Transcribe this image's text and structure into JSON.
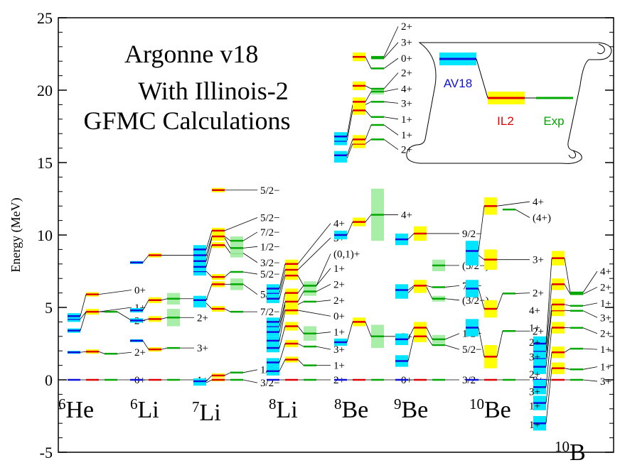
{
  "chart_data": {
    "type": "level-scheme",
    "title_lines": [
      "Argonne v18",
      "With Illinois-2",
      "GFMC Calculations"
    ],
    "ylabel": "Energy (MeV)",
    "ylim": [
      -5,
      25
    ],
    "yticks": [
      -5,
      0,
      5,
      10,
      15,
      20,
      25
    ],
    "colors": {
      "AV18": "#1010dd",
      "AV18_band": "#00e5ff",
      "IL2": "#e00000",
      "IL2_band": "#ffff00",
      "Exp": "#00a800",
      "Exp_band": "#a8eea8"
    },
    "legend": {
      "av18": "AV18",
      "il2": "IL2",
      "exp": "Exp"
    },
    "nuclei": [
      {
        "mass": "6",
        "name": "He",
        "col": 0,
        "levels": [
          {
            "label": "0+",
            "av18": 0,
            "av18_err": 0,
            "il2": 0,
            "il2_err": 0,
            "exp": 0,
            "exp_err": 0,
            "lab_y": 0
          },
          {
            "label": "2+",
            "av18": 1.9,
            "av18_err": 0.1,
            "il2": 1.95,
            "il2_err": 0.15,
            "exp": 1.8,
            "exp_err": 0,
            "lab_y": 1.9
          },
          {
            "label": "2+",
            "av18": 3.4,
            "av18_err": 0.15,
            "il2": 4.7,
            "il2_err": 0.15,
            "exp": 4.7,
            "exp_err": 0,
            "lab_y": 4.1
          },
          {
            "label": "1+",
            "av18": 4.2,
            "av18_err": 0.2,
            "il2": 4.7,
            "il2_err": 0.2,
            "exp": null,
            "exp_err": 0,
            "lab_y": 5.0
          },
          {
            "label": "0+",
            "av18": 4.4,
            "av18_err": 0.2,
            "il2": 5.9,
            "il2_err": 0.15,
            "exp": null,
            "exp_err": 0,
            "lab_y": 6.2
          }
        ]
      },
      {
        "mass": "6",
        "name": "Li",
        "col": 1,
        "levels": [
          {
            "label": "1+",
            "av18": 0,
            "av18_err": 0,
            "il2": 0,
            "il2_err": 0,
            "exp": 0,
            "exp_err": 0,
            "lab_y": 0
          },
          {
            "label": "3+",
            "av18": 2.7,
            "av18_err": 0.1,
            "il2": 2.1,
            "il2_err": 0.15,
            "exp": 2.2,
            "exp_err": 0,
            "lab_y": 2.2
          },
          {
            "label": "2+",
            "av18": 4.1,
            "av18_err": 0.15,
            "il2": 4.2,
            "il2_err": 0.2,
            "exp": 4.3,
            "exp_err": 0.6,
            "lab_y": 4.3
          },
          {
            "label": "1+",
            "av18": 4.8,
            "av18_err": 0.15,
            "il2": 5.5,
            "il2_err": 0.2,
            "exp": 5.6,
            "exp_err": 0.4,
            "lab_y": 5.6
          },
          {
            "label": "1+",
            "av18": 8.1,
            "av18_err": 0.1,
            "il2": 8.6,
            "il2_err": 0.15,
            "exp": null,
            "exp_err": 0,
            "lab_y": 8.6
          }
        ]
      },
      {
        "mass": "7",
        "name": "Li",
        "col": 2,
        "levels": [
          {
            "label": "3/2−",
            "av18": -0.2,
            "av18_err": 0.2,
            "il2": 0,
            "il2_err": 0.1,
            "exp": 0,
            "exp_err": 0,
            "lab_y": -0.2
          },
          {
            "label": "1/2−",
            "av18": -0.1,
            "av18_err": 0.2,
            "il2": 0.3,
            "il2_err": 0.15,
            "exp": 0.5,
            "exp_err": 0,
            "lab_y": 0.7
          },
          {
            "label": "7/2−",
            "av18": 5.3,
            "av18_err": 0.3,
            "il2": 4.9,
            "il2_err": 0.2,
            "exp": 4.7,
            "exp_err": 0,
            "lab_y": 4.7
          },
          {
            "label": "5/2−",
            "av18": 5.5,
            "av18_err": 0.3,
            "il2": 6.6,
            "il2_err": 0.2,
            "exp": 6.6,
            "exp_err": 0.4,
            "lab_y": 5.9
          },
          {
            "label": "5/2−",
            "av18": 7.5,
            "av18_err": 0.3,
            "il2": 7.1,
            "il2_err": 0.2,
            "exp": 7.45,
            "exp_err": 0,
            "lab_y": 7.3
          },
          {
            "label": "3/2−",
            "av18": 7.8,
            "av18_err": 0.3,
            "il2": 9.3,
            "il2_err": 0.2,
            "exp": 8.75,
            "exp_err": 0.3,
            "lab_y": 8.1
          },
          {
            "label": "1/2−",
            "av18": 8.2,
            "av18_err": 0.3,
            "il2": 9.8,
            "il2_err": 0.2,
            "exp": 9.1,
            "exp_err": 0.4,
            "lab_y": 9.2
          },
          {
            "label": "7/2−",
            "av18": 8.6,
            "av18_err": 0.3,
            "il2": 9.9,
            "il2_err": 0.2,
            "exp": 9.6,
            "exp_err": 0.3,
            "lab_y": 10.2
          },
          {
            "label": "5/2−",
            "av18": 9.0,
            "av18_err": 0.3,
            "il2": 10.3,
            "il2_err": 0.2,
            "exp": null,
            "exp_err": 0,
            "lab_y": 11.2
          },
          {
            "label": "5/2−",
            "av18": null,
            "av18_err": 0,
            "il2": 13.1,
            "il2_err": 0.15,
            "exp": null,
            "exp_err": 0,
            "lab_y": 13.1
          }
        ]
      },
      {
        "mass": "8",
        "name": "Li",
        "col": 3,
        "levels": [
          {
            "label": "2+",
            "av18": 0,
            "av18_err": 0,
            "il2": 0,
            "il2_err": 0,
            "exp": 0,
            "exp_err": 0,
            "lab_y": 0
          },
          {
            "label": "1+",
            "av18": 0.6,
            "av18_err": 0.3,
            "il2": 1.4,
            "il2_err": 0.2,
            "exp": 1.0,
            "exp_err": 0,
            "lab_y": 1.0
          },
          {
            "label": "3+",
            "av18": 1.2,
            "av18_err": 0.3,
            "il2": 2.5,
            "il2_err": 0.25,
            "exp": 2.3,
            "exp_err": 0,
            "lab_y": 2.1
          },
          {
            "label": "1+",
            "av18": 2.2,
            "av18_err": 0.3,
            "il2": 3.7,
            "il2_err": 0.3,
            "exp": 3.2,
            "exp_err": 0.5,
            "lab_y": 3.3
          },
          {
            "label": "0+",
            "av18": 2.7,
            "av18_err": 0.3,
            "il2": 4.8,
            "il2_err": 0.3,
            "exp": null,
            "exp_err": 0,
            "lab_y": 4.4
          },
          {
            "label": "2+",
            "av18": 3.3,
            "av18_err": 0.3,
            "il2": 5.2,
            "il2_err": 0.3,
            "exp": 5.4,
            "exp_err": 0,
            "lab_y": 5.5
          },
          {
            "label": "2+",
            "av18": 3.7,
            "av18_err": 0.3,
            "il2": 5.4,
            "il2_err": 0.3,
            "exp": 6.1,
            "exp_err": 0.3,
            "lab_y": 6.6
          },
          {
            "label": "1+",
            "av18": 4.0,
            "av18_err": 0.3,
            "il2": 6.0,
            "il2_err": 0.3,
            "exp": 6.5,
            "exp_err": 0.3,
            "lab_y": 7.7
          },
          {
            "label": "(0,1)+",
            "av18": 5.6,
            "av18_err": 0.3,
            "il2": 7.2,
            "il2_err": 0.3,
            "exp": 6.5,
            "exp_err": 0,
            "lab_y": 8.7
          },
          {
            "label": "3+",
            "av18": 6.0,
            "av18_err": 0.3,
            "il2": 7.6,
            "il2_err": 0.3,
            "exp": null,
            "exp_err": 0,
            "lab_y": 9.8
          },
          {
            "label": "4+",
            "av18": 6.3,
            "av18_err": 0.3,
            "il2": 8.0,
            "il2_err": 0.3,
            "exp": null,
            "exp_err": 0,
            "lab_y": 10.8
          }
        ]
      },
      {
        "mass": "8",
        "name": "Be",
        "col": 4,
        "levels": [
          {
            "label": "0+",
            "av18": 0,
            "av18_err": 0,
            "il2": 0,
            "il2_err": 0,
            "exp": 0,
            "exp_err": 0,
            "lab_y": 0
          },
          {
            "label": "2+",
            "av18": 2.6,
            "av18_err": 0.25,
            "il2": 4.0,
            "il2_err": 0.3,
            "exp": 3.0,
            "exp_err": 0.8,
            "lab_y": 3.0
          },
          {
            "label": "4+",
            "av18": 10.0,
            "av18_err": 0.3,
            "il2": 10.9,
            "il2_err": 0.3,
            "exp": 11.4,
            "exp_err": 1.8,
            "lab_y": 11.4
          },
          {
            "label": "2+",
            "av18": 15.3,
            "av18_err": 0.3,
            "il2": 16.3,
            "il2_err": 0.3,
            "exp": 16.6,
            "exp_err": 0,
            "lab_y": 15.9
          },
          {
            "label": "1+",
            "av18": 15.5,
            "av18_err": 0.3,
            "il2": 16.6,
            "il2_err": 0.3,
            "exp": 17.6,
            "exp_err": 0,
            "lab_y": 16.9
          },
          {
            "label": "1+",
            "av18": 16.5,
            "av18_err": 0.3,
            "il2": 18.6,
            "il2_err": 0.3,
            "exp": 18.15,
            "exp_err": 0,
            "lab_y": 18.0
          },
          {
            "label": "3+",
            "av18": 16.8,
            "av18_err": 0.3,
            "il2": 19.0,
            "il2_err": 0.3,
            "exp": 19.2,
            "exp_err": 0,
            "lab_y": 19.1
          },
          {
            "label": "4+",
            "av18": null,
            "av18_err": 0,
            "il2": 19.2,
            "il2_err": 0.3,
            "exp": 19.9,
            "exp_err": 0.2,
            "lab_y": 20.1
          },
          {
            "label": "2+",
            "av18": null,
            "av18_err": 0,
            "il2": 20.3,
            "il2_err": 0.3,
            "exp": 20.1,
            "exp_err": 0,
            "lab_y": 21.2
          },
          {
            "label": "0+",
            "av18": null,
            "av18_err": 0,
            "il2": 22.3,
            "il2_err": 0.3,
            "exp": 21.5,
            "exp_err": 0,
            "lab_y": 22.2
          },
          {
            "label": "3+",
            "av18": null,
            "av18_err": 0,
            "il2": null,
            "il2_err": 0,
            "exp": 22.2,
            "exp_err": 0,
            "lab_y": 23.3
          },
          {
            "label": "2+",
            "av18": null,
            "av18_err": 0,
            "il2": null,
            "il2_err": 0,
            "exp": 22.3,
            "exp_err": 0,
            "lab_y": 24.4
          }
        ]
      },
      {
        "mass": "9",
        "name": "Be",
        "col": 5,
        "levels": [
          {
            "label": "3/2−",
            "av18": 0,
            "av18_err": 0,
            "il2": 0,
            "il2_err": 0,
            "exp": 0,
            "exp_err": 0,
            "lab_y": 0
          },
          {
            "label": "5/2−",
            "av18": 1.3,
            "av18_err": 0.4,
            "il2": 3.0,
            "il2_err": 0.4,
            "exp": 2.4,
            "exp_err": 0,
            "lab_y": 2.1
          },
          {
            "label": "1/2−",
            "av18": 2.8,
            "av18_err": 0.4,
            "il2": 3.6,
            "il2_err": 0.4,
            "exp": 2.8,
            "exp_err": 0.3,
            "lab_y": 3.2
          },
          {
            "label": "(3/2−)",
            "av18": 6.0,
            "av18_err": 0.4,
            "il2": 6.4,
            "il2_err": 0.4,
            "exp": 5.6,
            "exp_err": 0.2,
            "lab_y": 5.5
          },
          {
            "label": "7/2−",
            "av18": 6.2,
            "av18_err": 0.4,
            "il2": 6.5,
            "il2_err": 0.4,
            "exp": 6.4,
            "exp_err": 0,
            "lab_y": 6.5
          },
          {
            "label": "(5/2−)",
            "av18": null,
            "av18_err": 0,
            "il2": null,
            "il2_err": 0,
            "exp": 7.9,
            "exp_err": 0.4,
            "lab_y": 7.9
          },
          {
            "label": "9/2−",
            "av18": 9.7,
            "av18_err": 0.4,
            "il2": 10.1,
            "il2_err": 0.5,
            "exp": null,
            "exp_err": 0,
            "lab_y": 10.1
          }
        ]
      },
      {
        "mass": "10",
        "name": "Be",
        "col": 6,
        "levels": [
          {
            "label": "0+",
            "av18": 0,
            "av18_err": 0,
            "il2": 0,
            "il2_err": 0,
            "exp": 0,
            "exp_err": 0,
            "lab_y": 0
          },
          {
            "label": "2+",
            "av18": 3.6,
            "av18_err": 0.6,
            "il2": 1.6,
            "il2_err": 0.8,
            "exp": 3.37,
            "exp_err": 0,
            "lab_y": 3.37
          },
          {
            "label": "2+",
            "av18": 6.3,
            "av18_err": 0.6,
            "il2": 4.9,
            "il2_err": 0.6,
            "exp": 5.96,
            "exp_err": 0,
            "lab_y": 6.0
          },
          {
            "label": "3+",
            "av18": 8.6,
            "av18_err": 0.7,
            "il2": 8.3,
            "il2_err": 0.7,
            "exp": null,
            "exp_err": 0,
            "lab_y": 8.3
          },
          {
            "label": "(4+)",
            "av18": null,
            "av18_err": 0,
            "il2": null,
            "il2_err": 0,
            "exp": 11.76,
            "exp_err": 0,
            "lab_y": 11.2
          },
          {
            "label": "4+",
            "av18": 8.9,
            "av18_err": 0.7,
            "il2": 12.0,
            "il2_err": 0.6,
            "exp": null,
            "exp_err": 0,
            "lab_y": 12.3
          }
        ]
      },
      {
        "mass": "10",
        "name": "B",
        "col": 7,
        "levels": [
          {
            "label": "3+",
            "av18": 0,
            "av18_err": 0,
            "il2": 0,
            "il2_err": 0,
            "exp": 0,
            "exp_err": 0,
            "lab_y": -0.1
          },
          {
            "label": "1+",
            "av18": -3.0,
            "av18_err": 0.5,
            "il2": 0.8,
            "il2_err": 0.4,
            "exp": 0.72,
            "exp_err": 0,
            "lab_y": 0.9
          },
          {
            "label": "1+",
            "av18": -1.6,
            "av18_err": 0.5,
            "il2": 1.9,
            "il2_err": 0.4,
            "exp": 2.15,
            "exp_err": 0,
            "lab_y": 2.1
          },
          {
            "label": "2+",
            "av18": -0.5,
            "av18_err": 0.5,
            "il2": 3.6,
            "il2_err": 0.4,
            "exp": 3.59,
            "exp_err": 0,
            "lab_y": 3.2
          },
          {
            "label": "3+",
            "av18": 0.9,
            "av18_err": 0.5,
            "il2": 4.8,
            "il2_err": 0.4,
            "exp": 4.77,
            "exp_err": 0,
            "lab_y": 4.3
          },
          {
            "label": "1+",
            "av18": 1.5,
            "av18_err": 0.5,
            "il2": 5.2,
            "il2_err": 0.4,
            "exp": 5.11,
            "exp_err": 0,
            "lab_y": 5.3
          },
          {
            "label": "2+",
            "av18": 2.0,
            "av18_err": 0.5,
            "il2": 6.6,
            "il2_err": 0.4,
            "exp": 5.92,
            "exp_err": 0,
            "lab_y": 6.4
          },
          {
            "label": "4+",
            "av18": 2.5,
            "av18_err": 0.5,
            "il2": 8.4,
            "il2_err": 0.5,
            "exp": 6.03,
            "exp_err": 0,
            "lab_y": 7.5
          }
        ]
      }
    ],
    "left_labels_10B": [
      "1+",
      "1+",
      "3+",
      "2+",
      "3+",
      "2+",
      "1+",
      "4+"
    ],
    "left_labels_10B_y": [
      -3.1,
      -1.8,
      -0.8,
      0.4,
      1.6,
      2.6,
      3.6,
      4.8
    ]
  }
}
